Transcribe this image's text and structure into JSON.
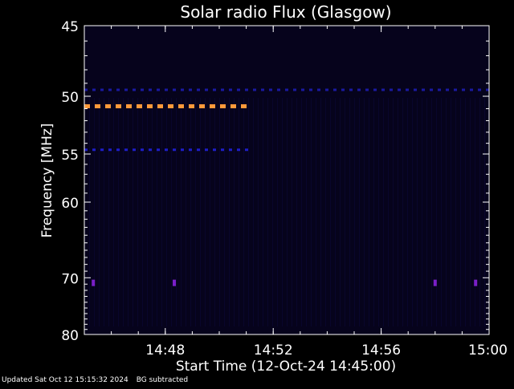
{
  "chart_data": {
    "type": "heatmap",
    "title": "Solar radio Flux (Glasgow)",
    "xlabel": "Start Time (12-Oct-24 14:45:00)",
    "ylabel": "Frequency [MHz]",
    "x_ticks": [
      "14:48",
      "14:52",
      "14:56",
      "15:00"
    ],
    "y_ticks": [
      "45",
      "50",
      "55",
      "60",
      "70",
      "80"
    ],
    "xlim": [
      "14:45:00",
      "15:00:00"
    ],
    "ylim": [
      45,
      80
    ],
    "grid": false,
    "colors": {
      "background": "#000000",
      "plot_background": "#06031c",
      "axes": "#ffffff",
      "band_orange": "#ff9a3a",
      "band_blue": "#1e1ec8",
      "band_blue_dim": "#1a1aa0",
      "spot_violet": "#7a1fc8"
    },
    "bands": [
      {
        "freq_mhz": 49.5,
        "start": "14:45:00",
        "end": "15:00:00",
        "color": "band_blue_dim",
        "dash": true
      },
      {
        "freq_mhz": 50.8,
        "start": "14:45:00",
        "end": "14:51:10",
        "color": "band_orange",
        "dash": true
      },
      {
        "freq_mhz": 54.6,
        "start": "14:45:00",
        "end": "14:51:10",
        "color": "band_blue",
        "dash": true
      }
    ],
    "spots": [
      {
        "time": "14:45:20",
        "freq_mhz": 70.8
      },
      {
        "time": "14:48:20",
        "freq_mhz": 70.8
      },
      {
        "time": "14:58:00",
        "freq_mhz": 70.8
      },
      {
        "time": "14:59:30",
        "freq_mhz": 70.8
      }
    ]
  },
  "footer": {
    "updated": "Updated Sat Oct 12 15:15:32 2024",
    "note": "BG subtracted"
  }
}
